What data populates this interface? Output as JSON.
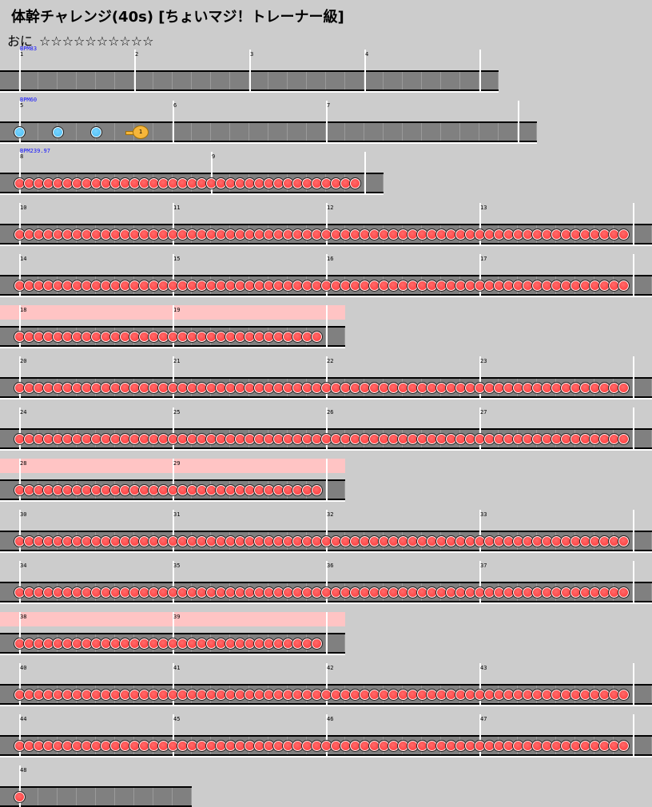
{
  "header": {
    "title": "体幹チャレンジ(40s) [ちょいマジ！トレーナー級]",
    "difficulty_label": "おに",
    "difficulty_stars": "☆☆☆☆☆☆☆☆☆☆"
  },
  "colors": {
    "background": "#cccccc",
    "lane": "#808080",
    "don_note": "#ff4040",
    "ka_note": "#44b8f0",
    "balloon_note": "#f6b63a",
    "gogo_band": "#ffc4c4",
    "bpm_text": "#1010ff"
  },
  "rows": [
    {
      "measures": [
        "1",
        "2",
        "3",
        "4"
      ],
      "bpm": "BPM83",
      "notes": "none",
      "gogo": false
    },
    {
      "measures": [
        "5",
        "6",
        "7"
      ],
      "bpm": "BPM60",
      "notes": "ka_and_balloon",
      "balloon_count": "1",
      "gogo": false
    },
    {
      "measures": [
        "8",
        "9"
      ],
      "bpm": "BPM239.97",
      "notes": "don_stream",
      "gogo": false
    },
    {
      "measures": [
        "10",
        "11",
        "12",
        "13"
      ],
      "notes": "don_stream",
      "gogo": false
    },
    {
      "measures": [
        "14",
        "15",
        "16",
        "17"
      ],
      "notes": "don_stream",
      "gogo": false
    },
    {
      "measures": [
        "18",
        "19"
      ],
      "notes": "don_stream",
      "gogo": true
    },
    {
      "measures": [
        "20",
        "21",
        "22",
        "23"
      ],
      "notes": "don_stream",
      "gogo": false
    },
    {
      "measures": [
        "24",
        "25",
        "26",
        "27"
      ],
      "notes": "don_stream",
      "gogo": false
    },
    {
      "measures": [
        "28",
        "29"
      ],
      "notes": "don_stream",
      "gogo": true
    },
    {
      "measures": [
        "30",
        "31",
        "32",
        "33"
      ],
      "notes": "don_stream",
      "gogo": false
    },
    {
      "measures": [
        "34",
        "35",
        "36",
        "37"
      ],
      "notes": "don_stream",
      "gogo": false
    },
    {
      "measures": [
        "38",
        "39"
      ],
      "notes": "don_stream",
      "gogo": true
    },
    {
      "measures": [
        "40",
        "41",
        "42",
        "43"
      ],
      "notes": "don_stream",
      "gogo": false
    },
    {
      "measures": [
        "44",
        "45",
        "46",
        "47"
      ],
      "notes": "don_stream",
      "gogo": false
    },
    {
      "measures": [
        "48"
      ],
      "notes": "single_don",
      "gogo": false
    }
  ]
}
